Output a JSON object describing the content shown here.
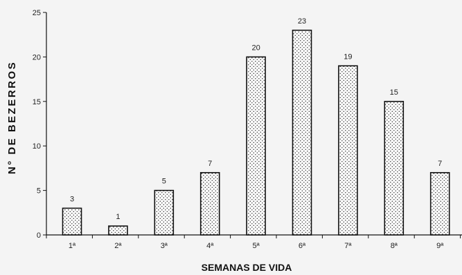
{
  "chart_data": {
    "type": "bar",
    "title": "",
    "xlabel": "SEMANAS DE VIDA",
    "ylabel": "N° DE BEZERROS",
    "categories": [
      "1ª",
      "2ª",
      "3ª",
      "4ª",
      "5ª",
      "6ª",
      "7ª",
      "8ª",
      "9ª"
    ],
    "values": [
      3,
      1,
      5,
      7,
      20,
      23,
      19,
      15,
      7
    ],
    "ylim": [
      0,
      25
    ],
    "yticks": [
      0,
      5,
      10,
      15,
      20,
      25
    ],
    "grid": false,
    "legend": "none",
    "bar_pattern": "dotted",
    "colors": {
      "bar_fill": "#ffffff",
      "bar_dots": "#333333",
      "bar_stroke": "#111111",
      "axis": "#111111",
      "background": "#f4f4f4"
    }
  }
}
